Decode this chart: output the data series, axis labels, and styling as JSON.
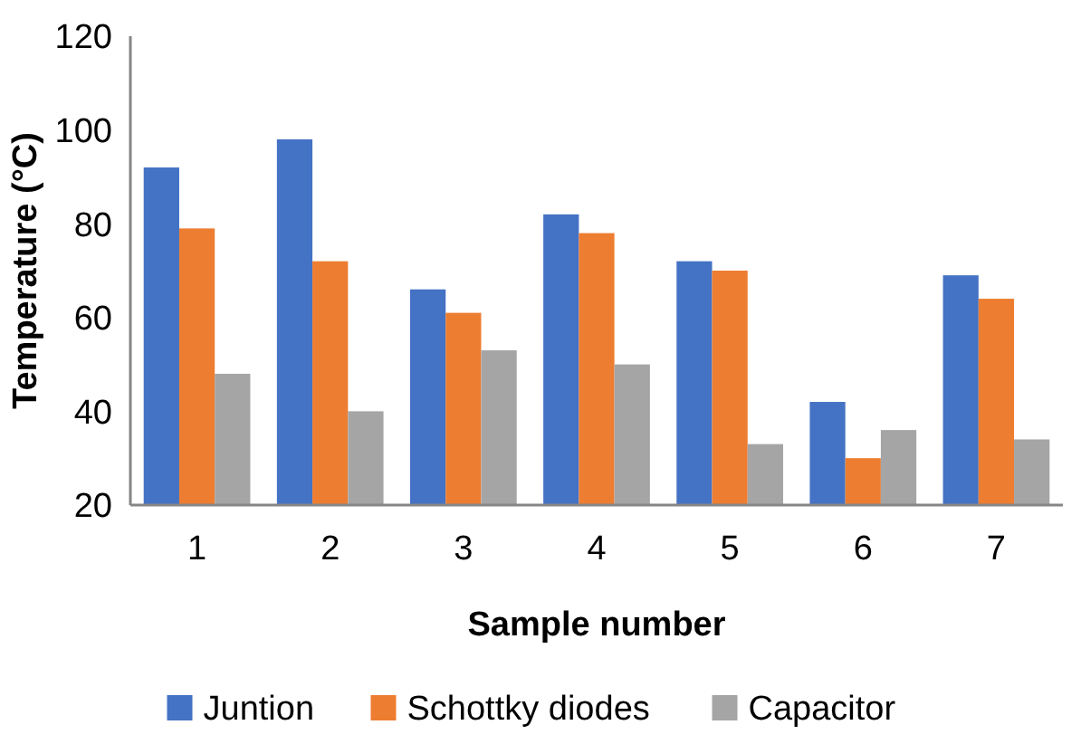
{
  "chart_data": {
    "type": "bar",
    "xlabel": "Sample number",
    "ylabel": "Temperature (°C)",
    "categories": [
      "1",
      "2",
      "3",
      "4",
      "5",
      "6",
      "7"
    ],
    "series": [
      {
        "name": "Juntion",
        "color": "#4472c4",
        "values": [
          92,
          98,
          66,
          82,
          72,
          42,
          69
        ]
      },
      {
        "name": "Schottky diodes",
        "color": "#ed7d31",
        "values": [
          79,
          72,
          61,
          78,
          70,
          30,
          64
        ]
      },
      {
        "name": "Capacitor",
        "color": "#a5a5a5",
        "values": [
          48,
          40,
          53,
          50,
          33,
          36,
          34
        ]
      }
    ],
    "ylim": [
      20,
      120
    ],
    "yticks": [
      20,
      40,
      60,
      80,
      100,
      120
    ],
    "grid": false,
    "legend": "bottom"
  }
}
